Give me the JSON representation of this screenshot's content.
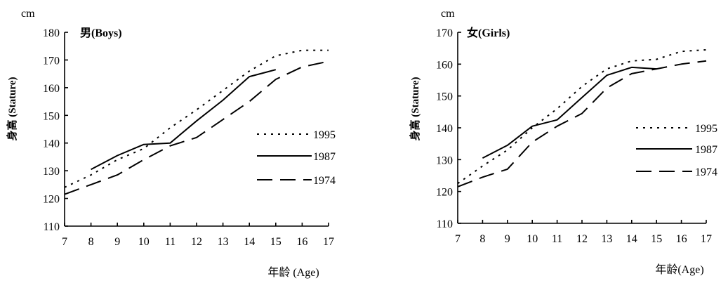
{
  "chart_data": [
    {
      "type": "line",
      "title": "男(Boys)",
      "unit_label": "cm",
      "ylabel": "身高 (Stature)",
      "xlabel": "年龄 (Age)",
      "x": [
        7,
        8,
        9,
        10,
        11,
        12,
        13,
        14,
        15,
        16,
        17
      ],
      "xlim": [
        7,
        17
      ],
      "ylim": [
        110,
        180
      ],
      "yticks": [
        110,
        120,
        130,
        140,
        150,
        160,
        170,
        180
      ],
      "grid": false,
      "legend_position": "right",
      "series": [
        {
          "name": "1995",
          "style": "dotted",
          "values": [
            124,
            128.5,
            134,
            138,
            145.5,
            152,
            159,
            166,
            171.5,
            173.5,
            173.5
          ]
        },
        {
          "name": "1987",
          "style": "solid",
          "values": [
            null,
            130.5,
            135.5,
            139.5,
            140,
            148,
            155.5,
            164,
            166.5,
            null,
            null
          ]
        },
        {
          "name": "1974",
          "style": "dashed",
          "values": [
            121.5,
            125,
            128.5,
            134,
            139,
            142,
            148.5,
            155,
            163,
            167.5,
            169.5
          ]
        }
      ]
    },
    {
      "type": "line",
      "title": "女(Girls)",
      "unit_label": "cm",
      "ylabel": "身高 (Stature)",
      "xlabel": "年龄(Age)",
      "x": [
        7,
        8,
        9,
        10,
        11,
        12,
        13,
        14,
        15,
        16,
        17
      ],
      "xlim": [
        7,
        17
      ],
      "ylim": [
        110,
        170
      ],
      "yticks": [
        110,
        120,
        130,
        140,
        150,
        160,
        170
      ],
      "grid": false,
      "legend_position": "right",
      "series": [
        {
          "name": "1995",
          "style": "dotted",
          "values": [
            122.5,
            128,
            133,
            140,
            146,
            153,
            158.5,
            161,
            161.5,
            164,
            164.5
          ]
        },
        {
          "name": "1987",
          "style": "solid",
          "values": [
            null,
            130.5,
            134.5,
            140.5,
            142.5,
            149.5,
            156.5,
            159,
            158.5,
            null,
            null
          ]
        },
        {
          "name": "1974",
          "style": "dashed",
          "values": [
            121.5,
            124.5,
            127,
            135.5,
            140.5,
            144.5,
            152.5,
            157,
            158.5,
            160,
            161
          ]
        }
      ]
    }
  ]
}
